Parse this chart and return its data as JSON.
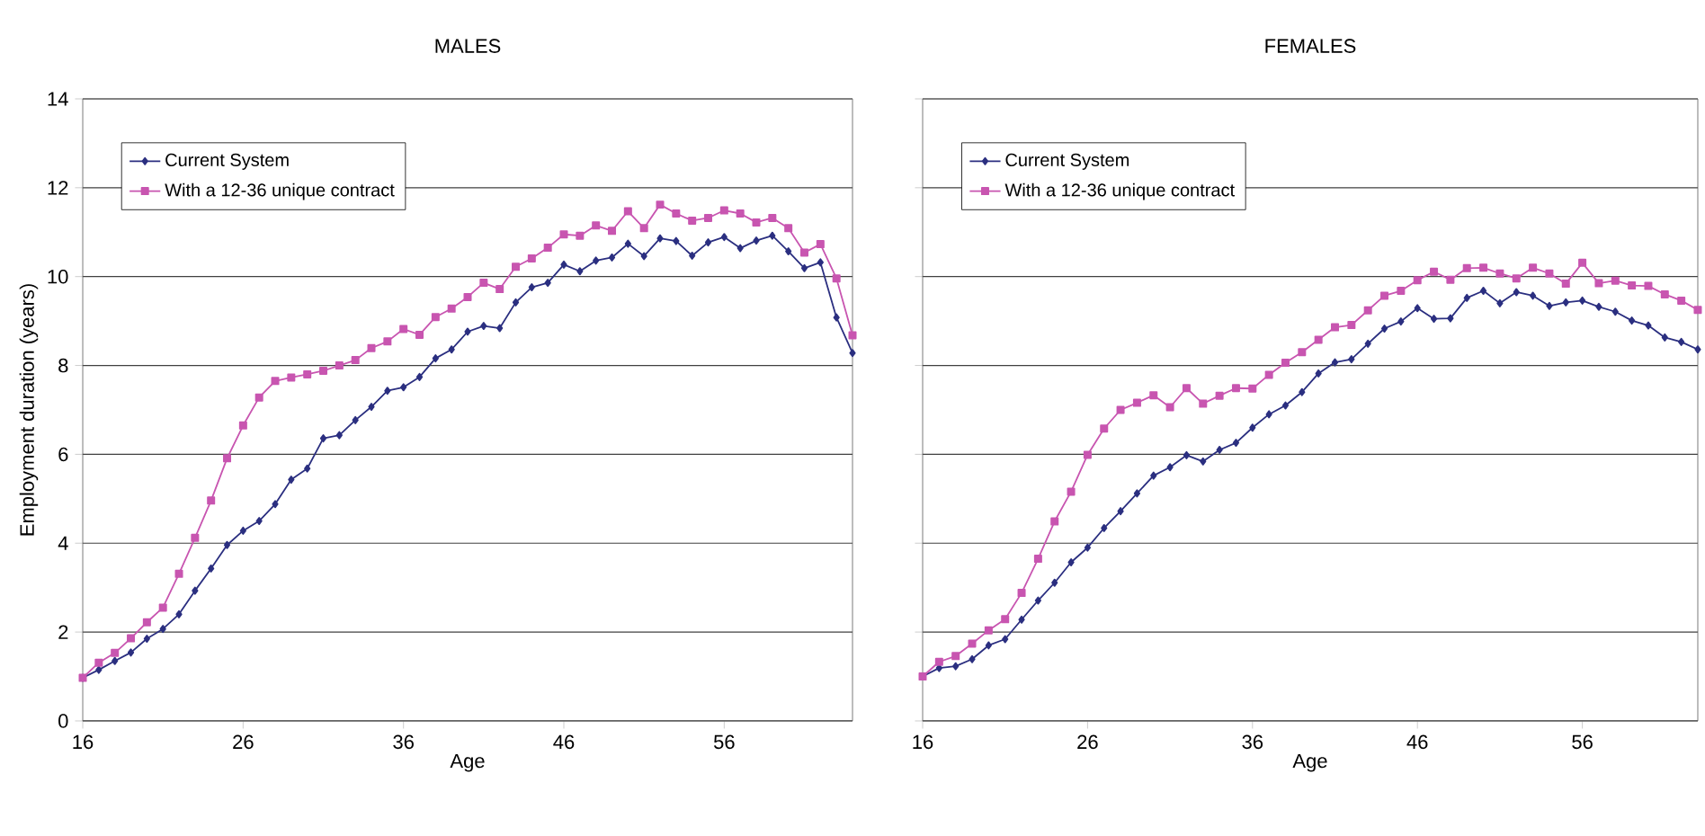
{
  "chart_data": [
    {
      "type": "line",
      "title": "MALES",
      "xlabel": "Age",
      "ylabel": "Employment duration (years)",
      "x": [
        16,
        17,
        18,
        19,
        20,
        21,
        22,
        23,
        24,
        25,
        26,
        27,
        28,
        29,
        30,
        31,
        32,
        33,
        34,
        35,
        36,
        37,
        38,
        39,
        40,
        41,
        42,
        43,
        44,
        45,
        46,
        47,
        48,
        49,
        50,
        51,
        52,
        53,
        54,
        55,
        56,
        57,
        58,
        59,
        60,
        61,
        62,
        63,
        64
      ],
      "xlim": [
        16,
        64
      ],
      "xticks": [
        16,
        26,
        36,
        46,
        56
      ],
      "ylim": [
        0,
        14
      ],
      "yticks": [
        0,
        2,
        4,
        6,
        8,
        10,
        12,
        14
      ],
      "grid": "y",
      "legend": "top left",
      "series": [
        {
          "name": "Current System",
          "color": "#2b2f80",
          "marker": "diamond",
          "values": [
            0.97,
            1.15,
            1.35,
            1.54,
            1.85,
            2.07,
            2.4,
            2.93,
            3.43,
            3.96,
            4.28,
            4.5,
            4.88,
            5.43,
            5.68,
            6.36,
            6.43,
            6.77,
            7.07,
            7.43,
            7.51,
            7.74,
            8.16,
            8.36,
            8.76,
            8.89,
            8.84,
            9.42,
            9.76,
            9.86,
            10.27,
            10.12,
            10.36,
            10.43,
            10.74,
            10.46,
            10.86,
            10.8,
            10.47,
            10.77,
            10.89,
            10.64,
            10.81,
            10.92,
            10.57,
            10.19,
            10.32,
            9.08,
            8.28
          ]
        },
        {
          "name": "With a 12-36 unique contract",
          "color": "#c855b0",
          "marker": "square",
          "values": [
            0.97,
            1.31,
            1.53,
            1.86,
            2.22,
            2.55,
            3.31,
            4.12,
            4.96,
            5.91,
            6.65,
            7.28,
            7.65,
            7.73,
            7.8,
            7.88,
            8.0,
            8.12,
            8.39,
            8.54,
            8.82,
            8.69,
            9.09,
            9.28,
            9.54,
            9.86,
            9.72,
            10.22,
            10.41,
            10.65,
            10.95,
            10.92,
            11.15,
            11.03,
            11.47,
            11.09,
            11.62,
            11.42,
            11.26,
            11.32,
            11.49,
            11.42,
            11.22,
            11.32,
            11.09,
            10.54,
            10.73,
            9.96,
            8.68
          ]
        }
      ]
    },
    {
      "type": "line",
      "title": "FEMALES",
      "xlabel": "Age",
      "x": [
        16,
        17,
        18,
        19,
        20,
        21,
        22,
        23,
        24,
        25,
        26,
        27,
        28,
        29,
        30,
        31,
        32,
        33,
        34,
        35,
        36,
        37,
        38,
        39,
        40,
        41,
        42,
        43,
        44,
        45,
        46,
        47,
        48,
        49,
        50,
        51,
        52,
        53,
        54,
        55,
        56,
        57,
        58,
        59,
        60,
        61,
        62,
        63
      ],
      "xlim": [
        16,
        63
      ],
      "xticks": [
        16,
        26,
        36,
        46,
        56
      ],
      "ylim": [
        0,
        14
      ],
      "yticks": [
        0,
        2,
        4,
        6,
        8,
        10,
        12,
        14
      ],
      "grid": "y",
      "legend": "top left",
      "tick_labels": "x",
      "series": [
        {
          "name": "Current System",
          "color": "#2b2f80",
          "marker": "diamond",
          "values": [
            1.0,
            1.19,
            1.23,
            1.39,
            1.7,
            1.84,
            2.28,
            2.71,
            3.11,
            3.57,
            3.9,
            4.34,
            4.72,
            5.12,
            5.52,
            5.71,
            5.98,
            5.84,
            6.1,
            6.26,
            6.6,
            6.9,
            7.1,
            7.4,
            7.82,
            8.07,
            8.14,
            8.49,
            8.83,
            8.99,
            9.29,
            9.05,
            9.06,
            9.52,
            9.68,
            9.4,
            9.65,
            9.57,
            9.34,
            9.42,
            9.46,
            9.32,
            9.21,
            9.01,
            8.9,
            8.63,
            8.53,
            8.36
          ]
        },
        {
          "name": "With a 12-36 unique contract",
          "color": "#c855b0",
          "marker": "square",
          "values": [
            1.0,
            1.33,
            1.46,
            1.74,
            2.04,
            2.29,
            2.88,
            3.65,
            4.49,
            5.16,
            5.99,
            6.58,
            7.0,
            7.16,
            7.33,
            7.06,
            7.49,
            7.14,
            7.32,
            7.49,
            7.48,
            7.79,
            8.06,
            8.3,
            8.58,
            8.86,
            8.91,
            9.24,
            9.57,
            9.68,
            9.92,
            10.11,
            9.93,
            10.19,
            10.2,
            10.07,
            9.96,
            10.2,
            10.07,
            9.84,
            10.31,
            9.85,
            9.91,
            9.8,
            9.79,
            9.6,
            9.46,
            9.25
          ]
        }
      ]
    }
  ]
}
